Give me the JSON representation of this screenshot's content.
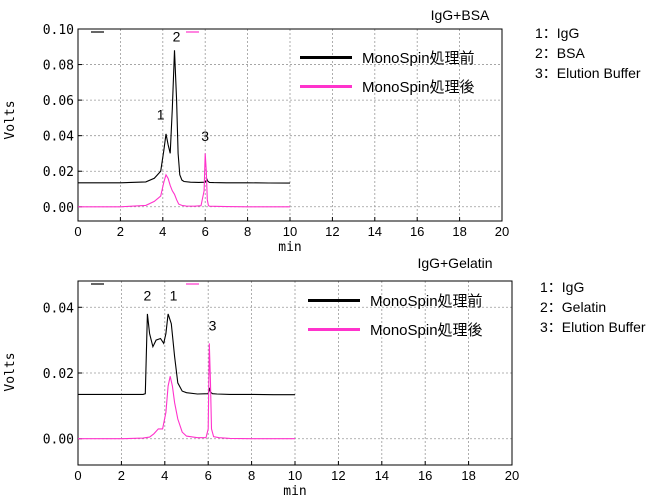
{
  "chart_data": [
    {
      "type": "line",
      "title": "IgG+BSA",
      "xlabel": "min",
      "ylabel": "Volts",
      "xlim": [
        0,
        20
      ],
      "ylim": [
        -0.008,
        0.1
      ],
      "xticks": [
        "0",
        "2",
        "4",
        "6",
        "8",
        "10",
        "12",
        "14",
        "16",
        "18",
        "20"
      ],
      "yticks": [
        "0.00",
        "0.02",
        "0.04",
        "0.06",
        "0.08",
        "0.10"
      ],
      "grid": true,
      "legend_position": "top-center",
      "series": [
        {
          "name": "MonoSpin処理前",
          "color": "#000000",
          "x": [
            0,
            2,
            3.2,
            3.6,
            3.9,
            4.05,
            4.15,
            4.25,
            4.35,
            4.45,
            4.55,
            4.65,
            4.72,
            4.8,
            4.9,
            5.0,
            5.3,
            5.7,
            6.0,
            6.08,
            6.12,
            6.2,
            6.4,
            7,
            8,
            9,
            10
          ],
          "y": [
            0.0135,
            0.0135,
            0.014,
            0.016,
            0.02,
            0.032,
            0.041,
            0.035,
            0.03,
            0.055,
            0.088,
            0.06,
            0.03,
            0.018,
            0.015,
            0.0142,
            0.0138,
            0.0137,
            0.0138,
            0.0155,
            0.0145,
            0.0137,
            0.0136,
            0.0135,
            0.0135,
            0.0134,
            0.0133
          ]
        },
        {
          "name": "MonoSpin処理後",
          "color": "#ff33cc",
          "x": [
            0,
            2,
            3.2,
            3.6,
            3.9,
            4.05,
            4.15,
            4.25,
            4.35,
            4.45,
            4.55,
            4.65,
            4.75,
            4.9,
            5.1,
            5.5,
            5.8,
            5.95,
            6.0,
            6.05,
            6.1,
            6.15,
            6.2,
            7,
            8,
            9,
            10
          ],
          "y": [
            0.0,
            0.0,
            0.0008,
            0.003,
            0.006,
            0.014,
            0.018,
            0.016,
            0.012,
            0.009,
            0.007,
            0.004,
            0.0015,
            0.0008,
            0.0004,
            0.0003,
            0.0006,
            0.009,
            0.03,
            0.02,
            0.004,
            0.0008,
            0.0003,
            0.0001,
            0.0,
            0.0,
            0.0
          ]
        }
      ],
      "annotations": [
        {
          "text": "1",
          "x": 3.9,
          "y": 0.049
        },
        {
          "text": "2",
          "x": 4.65,
          "y": 0.093
        },
        {
          "text": "3",
          "x": 6.0,
          "y": 0.037
        }
      ],
      "peak_key": [
        "1：IgG",
        "2：BSA",
        "3：Elution Buffer"
      ]
    },
    {
      "type": "line",
      "title": "IgG+Gelatin",
      "xlabel": "min",
      "ylabel": "Volts",
      "xlim": [
        0,
        20
      ],
      "ylim": [
        -0.008,
        0.048
      ],
      "xticks": [
        "0",
        "2",
        "4",
        "6",
        "8",
        "10",
        "12",
        "14",
        "16",
        "18",
        "20"
      ],
      "yticks": [
        "0.00",
        "0.02",
        "0.04"
      ],
      "grid": true,
      "legend_position": "top-center",
      "series": [
        {
          "name": "MonoSpin処理前",
          "color": "#000000",
          "x": [
            0,
            2,
            3.0,
            3.1,
            3.2,
            3.3,
            3.45,
            3.6,
            3.8,
            3.95,
            4.05,
            4.15,
            4.3,
            4.45,
            4.6,
            4.8,
            5.0,
            5.5,
            6.0,
            6.05,
            6.1,
            6.2,
            6.4,
            7,
            8,
            9,
            10
          ],
          "y": [
            0.0135,
            0.0135,
            0.0135,
            0.0137,
            0.038,
            0.032,
            0.028,
            0.03,
            0.0305,
            0.029,
            0.032,
            0.038,
            0.035,
            0.025,
            0.017,
            0.0145,
            0.014,
            0.0136,
            0.0137,
            0.0155,
            0.0142,
            0.0137,
            0.0136,
            0.0135,
            0.0135,
            0.0134,
            0.0134
          ]
        },
        {
          "name": "MonoSpin処理後",
          "color": "#ff33cc",
          "x": [
            0,
            2,
            3.0,
            3.3,
            3.5,
            3.7,
            3.9,
            4.05,
            4.15,
            4.25,
            4.35,
            4.45,
            4.6,
            4.8,
            5.0,
            5.5,
            5.9,
            6.0,
            6.05,
            6.1,
            6.15,
            6.25,
            6.5,
            7,
            8,
            9,
            10
          ],
          "y": [
            0.0,
            0.0,
            0.0002,
            0.0005,
            0.0015,
            0.003,
            0.003,
            0.008,
            0.016,
            0.019,
            0.016,
            0.011,
            0.006,
            0.002,
            0.0008,
            0.0003,
            0.0003,
            0.003,
            0.029,
            0.018,
            0.003,
            0.0006,
            0.0003,
            0.0001,
            0.0,
            0.0,
            0.0
          ]
        }
      ],
      "annotations": [
        {
          "text": "2",
          "x": 3.2,
          "y": 0.042
        },
        {
          "text": "1",
          "x": 4.4,
          "y": 0.042
        },
        {
          "text": "3",
          "x": 6.2,
          "y": 0.033
        }
      ],
      "peak_key": [
        "1：IgG",
        "2：Gelatin",
        "3：Elution Buffer"
      ]
    }
  ]
}
